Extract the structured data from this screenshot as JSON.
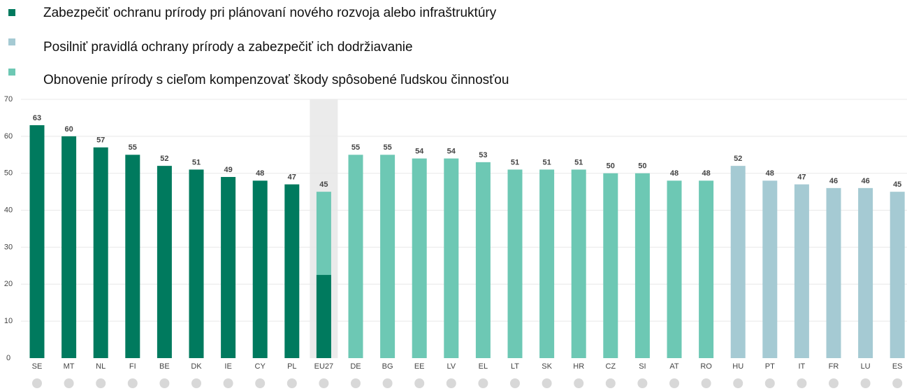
{
  "chart_data": {
    "type": "bar",
    "series": [
      {
        "name": "Zabezpečiť ochranu prírody pri plánovaní nového rozvoja alebo infraštruktúry",
        "color": "#007a5e"
      },
      {
        "name": "Posilniť pravidlá ochrany prírody a zabezpečiť ich dodržiavanie",
        "color": "#a5cad3"
      },
      {
        "name": "Obnovenie prírody s cieľom kompenzovať škody spôsobené ľudskou činnosťou",
        "color": "#6dc8b4"
      }
    ],
    "categories": [
      "SE",
      "MT",
      "NL",
      "FI",
      "BE",
      "DK",
      "IE",
      "CY",
      "PL",
      "EU27",
      "DE",
      "BG",
      "EE",
      "LV",
      "EL",
      "LT",
      "SK",
      "HR",
      "CZ",
      "SI",
      "AT",
      "RO",
      "HU",
      "PT",
      "IT",
      "FR",
      "LU",
      "ES"
    ],
    "values": [
      63,
      60,
      57,
      55,
      52,
      51,
      49,
      48,
      47,
      45,
      55,
      55,
      54,
      54,
      53,
      51,
      51,
      51,
      50,
      50,
      48,
      48,
      52,
      48,
      47,
      46,
      46,
      45
    ],
    "colors": [
      "#007a5e",
      "#007a5e",
      "#007a5e",
      "#007a5e",
      "#007a5e",
      "#007a5e",
      "#007a5e",
      "#007a5e",
      "#007a5e",
      "#6dc8b4",
      "#6dc8b4",
      "#6dc8b4",
      "#6dc8b4",
      "#6dc8b4",
      "#6dc8b4",
      "#6dc8b4",
      "#6dc8b4",
      "#6dc8b4",
      "#6dc8b4",
      "#6dc8b4",
      "#6dc8b4",
      "#6dc8b4",
      "#a5cad3",
      "#a5cad3",
      "#a5cad3",
      "#a5cad3",
      "#a5cad3",
      "#a5cad3"
    ],
    "highlight": "EU27",
    "split": {
      "category": "EU27",
      "value": 22.5,
      "color": "#007a5e"
    },
    "ylim": [
      0,
      70
    ],
    "yticks": [
      0,
      10,
      20,
      30,
      40,
      50,
      60,
      70
    ],
    "grid": true
  }
}
